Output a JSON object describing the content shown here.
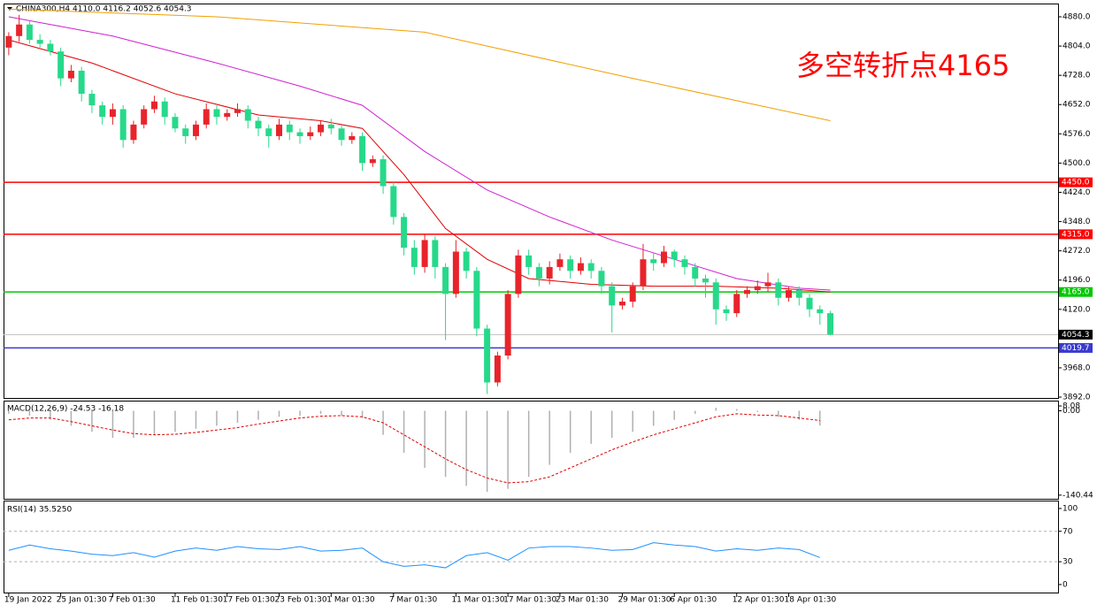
{
  "chart_data": {
    "type": "candlestick",
    "header": "CHINA300,H4  4110.0 4116.2 4052.6 4054.3",
    "annotation": "多空转折点4165",
    "annotation_color": "#ff0000",
    "up_color": "#e8242b",
    "down_color": "#26d98a",
    "candles": {
      "open": [
        4800,
        4830,
        4860,
        4820,
        4810,
        4790,
        4720,
        4740,
        4680,
        4650,
        4620,
        4640,
        4560,
        4600,
        4640,
        4660,
        4620,
        4590,
        4570,
        4600,
        4640,
        4620,
        4630,
        4640,
        4610,
        4590,
        4570,
        4600,
        4580,
        4570,
        4580,
        4600,
        4590,
        4560,
        4570,
        4500,
        4510,
        4440,
        4360,
        4280,
        4230,
        4300,
        4230,
        4160,
        4270,
        4220,
        4070,
        3930,
        4000,
        4160,
        4260,
        4230,
        4200,
        4230,
        4250,
        4220,
        4240,
        4220,
        4180,
        4130,
        4140,
        4180,
        4250,
        4240,
        4270,
        4250,
        4230,
        4200,
        4190,
        4120,
        4110,
        4160,
        4170,
        4180,
        4190,
        4150,
        4170,
        4150,
        4120,
        4110
      ],
      "high": [
        4840,
        4885,
        4870,
        4835,
        4820,
        4800,
        4755,
        4750,
        4690,
        4660,
        4655,
        4650,
        4610,
        4650,
        4675,
        4670,
        4630,
        4600,
        4610,
        4655,
        4650,
        4640,
        4655,
        4650,
        4620,
        4600,
        4615,
        4610,
        4590,
        4595,
        4610,
        4615,
        4600,
        4580,
        4580,
        4520,
        4520,
        4450,
        4370,
        4300,
        4315,
        4310,
        4240,
        4300,
        4280,
        4230,
        4080,
        4010,
        4170,
        4275,
        4275,
        4240,
        4245,
        4265,
        4260,
        4255,
        4250,
        4230,
        4190,
        4150,
        4190,
        4290,
        4265,
        4285,
        4275,
        4260,
        4240,
        4210,
        4200,
        4130,
        4170,
        4180,
        4195,
        4215,
        4200,
        4180,
        4180,
        4160,
        4130,
        4116.2
      ],
      "low": [
        4780,
        4815,
        4810,
        4800,
        4780,
        4700,
        4710,
        4660,
        4630,
        4600,
        4600,
        4540,
        4550,
        4590,
        4630,
        4600,
        4580,
        4550,
        4560,
        4590,
        4600,
        4610,
        4620,
        4590,
        4570,
        4540,
        4560,
        4560,
        4550,
        4560,
        4570,
        4575,
        4545,
        4550,
        4480,
        4490,
        4420,
        4340,
        4260,
        4210,
        4215,
        4200,
        4040,
        4150,
        4200,
        4050,
        3900,
        3920,
        3990,
        4150,
        4210,
        4180,
        4185,
        4220,
        4200,
        4210,
        4200,
        4160,
        4060,
        4120,
        4125,
        4170,
        4220,
        4230,
        4230,
        4210,
        4180,
        4150,
        4080,
        4090,
        4100,
        4150,
        4160,
        4165,
        4130,
        4140,
        4130,
        4100,
        4080,
        4052.6
      ],
      "close": [
        4830,
        4860,
        4820,
        4810,
        4790,
        4720,
        4740,
        4680,
        4650,
        4620,
        4640,
        4560,
        4600,
        4640,
        4660,
        4620,
        4590,
        4570,
        4600,
        4640,
        4620,
        4630,
        4640,
        4610,
        4590,
        4570,
        4600,
        4580,
        4570,
        4580,
        4600,
        4590,
        4560,
        4570,
        4500,
        4510,
        4440,
        4360,
        4280,
        4230,
        4300,
        4230,
        4160,
        4270,
        4220,
        4070,
        3930,
        4000,
        4160,
        4260,
        4230,
        4200,
        4230,
        4250,
        4220,
        4240,
        4220,
        4180,
        4130,
        4140,
        4180,
        4250,
        4240,
        4270,
        4250,
        4230,
        4200,
        4190,
        4120,
        4110,
        4160,
        4170,
        4180,
        4190,
        4150,
        4170,
        4150,
        4120,
        4110,
        4054.3
      ]
    },
    "xlim": [
      -0.5,
      100.9
    ],
    "xticks": [
      {
        "value": 0,
        "label": "19 Jan 2022"
      },
      {
        "value": 5,
        "label": "25 Jan 01:30"
      },
      {
        "value": 10,
        "label": "7 Feb 01:30"
      },
      {
        "value": 16,
        "label": "11 Feb 01:30"
      },
      {
        "value": 21,
        "label": "17 Feb 01:30"
      },
      {
        "value": 26,
        "label": "23 Feb 01:30"
      },
      {
        "value": 31,
        "label": "1 Mar 01:30"
      },
      {
        "value": 37,
        "label": "7 Mar 01:30"
      },
      {
        "value": 43,
        "label": "11 Mar 01:30"
      },
      {
        "value": 48,
        "label": "17 Mar 01:30"
      },
      {
        "value": 53,
        "label": "23 Mar 01:30"
      },
      {
        "value": 59,
        "label": "29 Mar 01:30"
      },
      {
        "value": 64,
        "label": "6 Apr 01:30"
      },
      {
        "value": 70,
        "label": "12 Apr 01:30"
      },
      {
        "value": 75,
        "label": "18 Apr 01:30"
      }
    ],
    "ylim": [
      3887.4,
      4912.2
    ],
    "yticks": [
      {
        "value": 4880,
        "label": "4880.0"
      },
      {
        "value": 4804,
        "label": "4804.0"
      },
      {
        "value": 4728,
        "label": "4728.0"
      },
      {
        "value": 4652,
        "label": "4652.0"
      },
      {
        "value": 4576,
        "label": "4576.0"
      },
      {
        "value": 4500,
        "label": "4500.0"
      },
      {
        "value": 4424,
        "label": "4424.0"
      },
      {
        "value": 4348,
        "label": "4348.0"
      },
      {
        "value": 4272,
        "label": "4272.0"
      },
      {
        "value": 4196,
        "label": "4196.0"
      },
      {
        "value": 4120,
        "label": "4120.0"
      },
      {
        "value": 3968,
        "label": "3968.0"
      },
      {
        "value": 3892,
        "label": "3892.0"
      }
    ],
    "lines": [
      {
        "color": "#e00000",
        "x": [
          0,
          8,
          16,
          24,
          30,
          34,
          38,
          42,
          46,
          50,
          56,
          62,
          68,
          74,
          79
        ],
        "values": [
          4820,
          4760,
          4680,
          4625,
          4610,
          4590,
          4470,
          4330,
          4250,
          4200,
          4185,
          4180,
          4180,
          4175,
          4165
        ]
      },
      {
        "color": "#d020d0",
        "x": [
          0,
          10,
          20,
          28,
          34,
          40,
          46,
          52,
          58,
          64,
          70,
          76,
          79
        ],
        "values": [
          4880,
          4830,
          4760,
          4700,
          4650,
          4530,
          4430,
          4360,
          4300,
          4250,
          4200,
          4175,
          4170
        ]
      },
      {
        "color": "#f0a000",
        "x": [
          0,
          20,
          40,
          60,
          79
        ],
        "values": [
          4900,
          4880,
          4840,
          4720,
          4610
        ]
      }
    ],
    "levels": [
      {
        "value": 4450,
        "label": "4450.0",
        "color": "#ff0000"
      },
      {
        "value": 4315,
        "label": "4315.0",
        "color": "#ff0000"
      },
      {
        "value": 4165,
        "label": "4165.0",
        "color": "#00c800"
      },
      {
        "value": 4054.3,
        "label": "4054.3",
        "color": "#c0c0c0",
        "label_bg": "#000000"
      },
      {
        "value": 4019.7,
        "label": "4019.7",
        "color": "#3a3ad0"
      }
    ],
    "macd": {
      "label": "MACD(12,26,9) -24.53 -16.18",
      "x": [
        0,
        2,
        4,
        6,
        8,
        10,
        12,
        14,
        16,
        18,
        20,
        22,
        24,
        26,
        28,
        30,
        32,
        34,
        36,
        38,
        40,
        42,
        44,
        46,
        48,
        50,
        52,
        54,
        56,
        58,
        60,
        62,
        64,
        66,
        68,
        70,
        72,
        74,
        76,
        78
      ],
      "histogram": [
        -5,
        -8,
        -15,
        -25,
        -35,
        -45,
        -45,
        -40,
        -35,
        -30,
        -25,
        -20,
        -15,
        -10,
        -8,
        -5,
        -8,
        -12,
        -40,
        -70,
        -95,
        -110,
        -125,
        -135,
        -130,
        -110,
        -90,
        -70,
        -55,
        -45,
        -35,
        -25,
        -15,
        -5,
        5,
        3,
        -2,
        -10,
        -15,
        -24.53
      ],
      "signal": [
        -15,
        -12,
        -12,
        -18,
        -25,
        -32,
        -38,
        -40,
        -39,
        -36,
        -32,
        -28,
        -22,
        -17,
        -12,
        -9,
        -8,
        -10,
        -20,
        -40,
        -60,
        -80,
        -98,
        -112,
        -120,
        -118,
        -110,
        -95,
        -80,
        -65,
        -52,
        -40,
        -30,
        -20,
        -10,
        -5,
        -7,
        -8,
        -12,
        -16.18
      ],
      "ylim": [
        -148,
        14
      ],
      "yticks": [
        {
          "value": 8.08,
          "label": "8.08"
        },
        {
          "value": 0,
          "label": "0.00"
        },
        {
          "value": -140.44,
          "label": "-140.44"
        }
      ]
    },
    "rsi": {
      "label": "RSI(14) 35.5250",
      "x": [
        0,
        2,
        4,
        6,
        8,
        10,
        12,
        14,
        16,
        18,
        20,
        22,
        24,
        26,
        28,
        30,
        32,
        34,
        36,
        38,
        40,
        42,
        44,
        46,
        48,
        50,
        52,
        54,
        56,
        58,
        60,
        62,
        64,
        66,
        68,
        70,
        72,
        74,
        76,
        78
      ],
      "values": [
        45,
        52,
        47,
        44,
        40,
        38,
        42,
        36,
        44,
        48,
        45,
        50,
        47,
        46,
        50,
        44,
        45,
        48,
        30,
        24,
        26,
        22,
        38,
        42,
        32,
        48,
        50,
        50,
        48,
        45,
        46,
        55,
        52,
        50,
        44,
        47,
        45,
        48,
        46,
        35.525
      ],
      "color": "#1e90ff",
      "ylim": [
        -10.5,
        108.1
      ],
      "yticks": [
        100,
        70,
        30,
        0
      ],
      "levels": [
        70,
        30
      ]
    }
  }
}
